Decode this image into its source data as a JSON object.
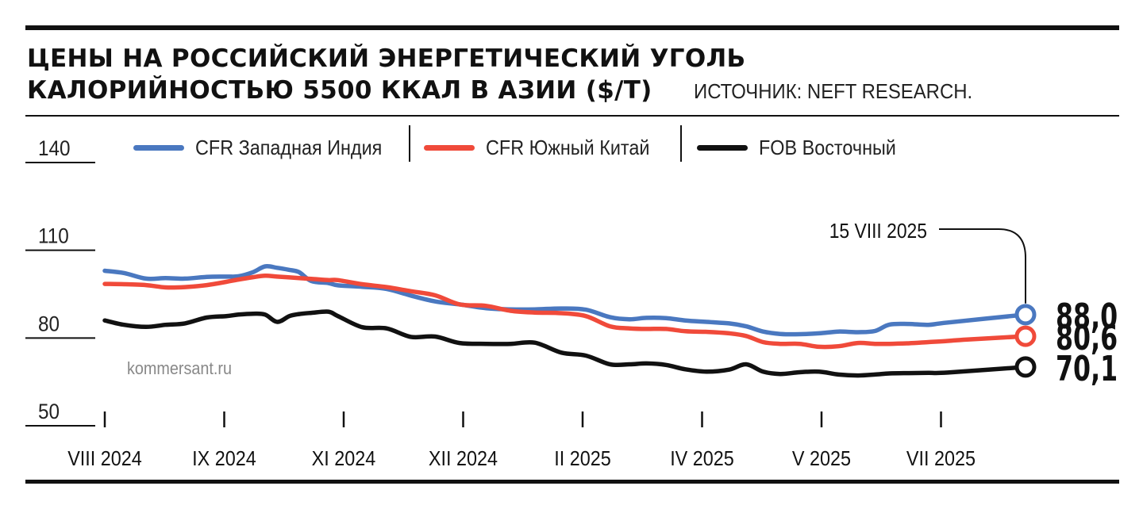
{
  "title_line1": "ЦЕНЫ НА РОССИЙСКИЙ ЭНЕРГЕТИЧЕСКИЙ УГОЛЬ",
  "title_line2": "КАЛОРИЙНОСТЬЮ 5500 ККАЛ В АЗИИ ($/Т)",
  "source": "ИСТОЧНИК: NEFT RESEARCH.",
  "watermark": "kommersant.ru",
  "colors": {
    "india": "#4a78c0",
    "china": "#f04a3a",
    "fob": "#111111"
  },
  "chart_data": {
    "type": "line",
    "title": "ЦЕНЫ НА РОССИЙСКИЙ ЭНЕРГЕТИЧЕСКИЙ УГОЛЬ КАЛОРИЙНОСТЬЮ 5500 ККАЛ В АЗИИ ($/Т)",
    "ylim": [
      50,
      140
    ],
    "yticks": [
      50,
      80,
      110,
      140
    ],
    "xlim": [
      "2024-08-01",
      "2025-08-15"
    ],
    "xticks": [
      {
        "date": "2024-08-01",
        "label": "VIII 2024"
      },
      {
        "date": "2024-09-01",
        "label": "IX 2024"
      },
      {
        "date": "2024-10-01",
        "label": "XI 2024"
      },
      {
        "date": "2024-11-01",
        "label": "XII 2024"
      },
      {
        "date": "2024-12-01",
        "label": "II 2025"
      },
      {
        "date": "2025-01-01",
        "label": "IV 2025"
      },
      {
        "date": "2025-02-01",
        "label": "V 2025"
      },
      {
        "date": "2025-03-01",
        "label": "VII 2025"
      }
    ],
    "annotation": "15 VIII 2025",
    "grid": false,
    "legend_position": "top",
    "series": [
      {
        "name": "CFR Западная Индия",
        "color": "#4a78c0",
        "end_label": "88,0",
        "points": [
          [
            "2024-08-01",
            103.0
          ],
          [
            "2024-08-09",
            102.2
          ],
          [
            "2024-08-18",
            100.3
          ],
          [
            "2024-08-26",
            100.5
          ],
          [
            "2024-09-03",
            100.3
          ],
          [
            "2024-09-12",
            100.9
          ],
          [
            "2024-09-20",
            101.0
          ],
          [
            "2024-09-25",
            101.1
          ],
          [
            "2024-10-01",
            102.5
          ],
          [
            "2024-10-06",
            104.5
          ],
          [
            "2024-10-11",
            104.0
          ],
          [
            "2024-10-16",
            103.3
          ],
          [
            "2024-10-20",
            102.5
          ],
          [
            "2024-10-25",
            99.5
          ],
          [
            "2024-11-01",
            98.8
          ],
          [
            "2024-11-05",
            98.0
          ],
          [
            "2024-11-15",
            97.5
          ],
          [
            "2024-11-25",
            96.8
          ],
          [
            "2024-12-05",
            94.5
          ],
          [
            "2024-12-15",
            92.5
          ],
          [
            "2024-12-25",
            91.5
          ],
          [
            "2025-01-05",
            90.2
          ],
          [
            "2025-01-15",
            89.8
          ],
          [
            "2025-01-25",
            89.8
          ],
          [
            "2025-02-05",
            90.1
          ],
          [
            "2025-02-15",
            89.7
          ],
          [
            "2025-02-25",
            87.1
          ],
          [
            "2025-03-05",
            86.4
          ],
          [
            "2025-03-12",
            86.9
          ],
          [
            "2025-03-20",
            86.8
          ],
          [
            "2025-03-28",
            86.0
          ],
          [
            "2025-04-06",
            85.5
          ],
          [
            "2025-04-15",
            85.0
          ],
          [
            "2025-04-22",
            84.0
          ],
          [
            "2025-04-29",
            82.2
          ],
          [
            "2025-05-06",
            81.4
          ],
          [
            "2025-05-14",
            81.3
          ],
          [
            "2025-05-22",
            81.6
          ],
          [
            "2025-05-30",
            82.2
          ],
          [
            "2025-06-07",
            82.0
          ],
          [
            "2025-06-14",
            82.4
          ],
          [
            "2025-06-20",
            84.6
          ],
          [
            "2025-06-28",
            84.8
          ],
          [
            "2025-07-06",
            84.5
          ],
          [
            "2025-07-14",
            85.3
          ],
          [
            "2025-08-15",
            88.0
          ]
        ]
      },
      {
        "name": "CFR Южный Китай",
        "color": "#f04a3a",
        "end_label": "80,6",
        "points": [
          [
            "2024-08-01",
            98.5
          ],
          [
            "2024-08-09",
            98.4
          ],
          [
            "2024-08-18",
            98.1
          ],
          [
            "2024-08-26",
            97.3
          ],
          [
            "2024-09-03",
            97.4
          ],
          [
            "2024-09-12",
            98.1
          ],
          [
            "2024-09-20",
            99.2
          ],
          [
            "2024-09-25",
            100.0
          ],
          [
            "2024-10-01",
            100.8
          ],
          [
            "2024-10-06",
            101.3
          ],
          [
            "2024-10-11",
            101.0
          ],
          [
            "2024-10-20",
            100.5
          ],
          [
            "2024-10-25",
            100.2
          ],
          [
            "2024-11-01",
            99.8
          ],
          [
            "2024-11-05",
            99.8
          ],
          [
            "2024-11-15",
            98.4
          ],
          [
            "2024-11-25",
            97.4
          ],
          [
            "2024-12-05",
            96.0
          ],
          [
            "2024-12-15",
            94.6
          ],
          [
            "2024-12-25",
            91.5
          ],
          [
            "2025-01-05",
            91.0
          ],
          [
            "2025-01-15",
            89.3
          ],
          [
            "2025-01-25",
            88.7
          ],
          [
            "2025-02-05",
            88.5
          ],
          [
            "2025-02-15",
            87.5
          ],
          [
            "2025-02-25",
            84.0
          ],
          [
            "2025-03-05",
            83.3
          ],
          [
            "2025-03-12",
            83.1
          ],
          [
            "2025-03-20",
            83.1
          ],
          [
            "2025-03-28",
            82.3
          ],
          [
            "2025-04-06",
            82.1
          ],
          [
            "2025-04-15",
            81.6
          ],
          [
            "2025-04-22",
            80.7
          ],
          [
            "2025-04-29",
            78.6
          ],
          [
            "2025-05-06",
            78.0
          ],
          [
            "2025-05-14",
            78.0
          ],
          [
            "2025-05-22",
            77.0
          ],
          [
            "2025-05-30",
            77.2
          ],
          [
            "2025-06-07",
            78.3
          ],
          [
            "2025-06-14",
            78.0
          ],
          [
            "2025-06-20",
            78.0
          ],
          [
            "2025-06-28",
            78.2
          ],
          [
            "2025-07-06",
            78.6
          ],
          [
            "2025-07-14",
            79.0
          ],
          [
            "2025-07-22",
            79.5
          ],
          [
            "2025-08-15",
            80.6
          ]
        ]
      },
      {
        "name": "FOB Восточный",
        "color": "#111111",
        "end_label": "70,1",
        "points": [
          [
            "2024-08-01",
            86.0
          ],
          [
            "2024-08-09",
            84.5
          ],
          [
            "2024-08-18",
            83.8
          ],
          [
            "2024-08-26",
            84.5
          ],
          [
            "2024-09-03",
            85.0
          ],
          [
            "2024-09-12",
            87.0
          ],
          [
            "2024-09-20",
            87.5
          ],
          [
            "2024-09-25",
            88.0
          ],
          [
            "2024-10-01",
            88.3
          ],
          [
            "2024-10-06",
            88.0
          ],
          [
            "2024-10-11",
            85.5
          ],
          [
            "2024-10-16",
            87.5
          ],
          [
            "2024-10-20",
            88.2
          ],
          [
            "2024-10-25",
            88.6
          ],
          [
            "2024-11-01",
            89.0
          ],
          [
            "2024-11-05",
            87.5
          ],
          [
            "2024-11-15",
            83.7
          ],
          [
            "2024-11-25",
            83.3
          ],
          [
            "2024-12-05",
            80.4
          ],
          [
            "2024-12-15",
            80.5
          ],
          [
            "2024-12-25",
            78.3
          ],
          [
            "2025-01-05",
            78.0
          ],
          [
            "2025-01-15",
            78.0
          ],
          [
            "2025-01-25",
            78.4
          ],
          [
            "2025-02-05",
            75.0
          ],
          [
            "2025-02-15",
            74.0
          ],
          [
            "2025-02-25",
            71.0
          ],
          [
            "2025-03-05",
            71.0
          ],
          [
            "2025-03-12",
            71.3
          ],
          [
            "2025-03-20",
            70.8
          ],
          [
            "2025-03-28",
            69.3
          ],
          [
            "2025-04-06",
            68.5
          ],
          [
            "2025-04-15",
            69.2
          ],
          [
            "2025-04-22",
            71.0
          ],
          [
            "2025-04-29",
            68.5
          ],
          [
            "2025-05-06",
            67.7
          ],
          [
            "2025-05-14",
            68.3
          ],
          [
            "2025-05-22",
            68.5
          ],
          [
            "2025-05-30",
            67.5
          ],
          [
            "2025-06-07",
            67.2
          ],
          [
            "2025-06-14",
            67.5
          ],
          [
            "2025-06-20",
            67.9
          ],
          [
            "2025-06-28",
            68.0
          ],
          [
            "2025-07-06",
            68.1
          ],
          [
            "2025-07-14",
            68.2
          ],
          [
            "2025-08-15",
            70.1
          ]
        ]
      }
    ]
  }
}
